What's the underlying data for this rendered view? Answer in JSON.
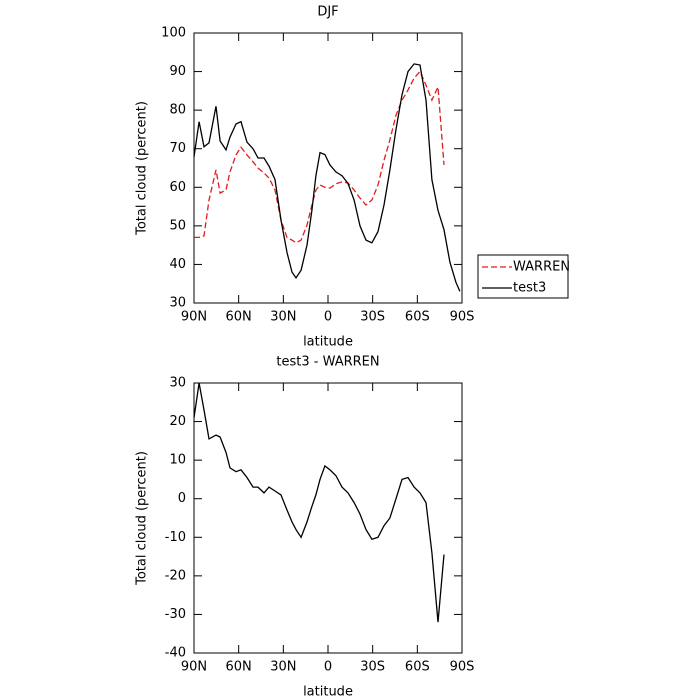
{
  "chart_data": [
    {
      "type": "line",
      "title": "DJF",
      "x_label": "latitude",
      "y_label": "Total cloud (percent)",
      "x": [
        90,
        86.6,
        83.3,
        79.9,
        75.2,
        72.5,
        68.5,
        65.8,
        61.8,
        58.4,
        54.4,
        50.4,
        47,
        43,
        39.6,
        35.6,
        31.6,
        27.5,
        24.2,
        21.5,
        18.1,
        14.1,
        10.8,
        8.1,
        5.4,
        2.1,
        -1.3,
        -5.3,
        -9.4,
        -13.4,
        -17.5,
        -21.5,
        -25.5,
        -29.5,
        -33.6,
        -37.6,
        -41.6,
        -45.7,
        -49.7,
        -53.7,
        -57.8,
        -61.8,
        -65.8,
        -69.8,
        -73.9,
        -77.9,
        -81.9,
        -85.9,
        -88.6
      ],
      "series": [
        {
          "name": "WARREN",
          "color": "#e41a1c",
          "dashed": true,
          "values": [
            47,
            47,
            47.4,
            56.7,
            64.5,
            58.5,
            59.3,
            64,
            68.4,
            70.4,
            68.4,
            66.6,
            65,
            63.7,
            62.4,
            59.3,
            51.5,
            46.9,
            46.3,
            45.6,
            46.3,
            50.2,
            55.4,
            59.3,
            60.6,
            60,
            59.8,
            60.9,
            61.4,
            61.1,
            59.3,
            57.2,
            55.4,
            56.7,
            60.6,
            67,
            72.3,
            78.7,
            82.6,
            85.2,
            88.3,
            90,
            86.5,
            82.6,
            86,
            65.8,
            null,
            null,
            null
          ]
        },
        {
          "name": "test3",
          "color": "#000000",
          "dashed": false,
          "values": [
            67.9,
            77,
            70.5,
            71.5,
            81,
            72,
            69.7,
            73,
            76.4,
            77,
            71.7,
            70,
            67.6,
            67.6,
            65.5,
            62,
            51.5,
            43,
            38,
            36.5,
            38.5,
            45,
            54,
            63,
            69,
            68.5,
            65.8,
            64,
            63,
            61,
            56.7,
            50,
            46.3,
            45.6,
            48.5,
            55.4,
            64.5,
            75,
            84,
            90,
            92,
            91.7,
            82.6,
            62,
            54,
            49,
            40.6,
            35.4,
            33
          ]
        }
      ],
      "xlim": [
        90,
        -90
      ],
      "ylim": [
        30,
        100
      ],
      "xticks": [
        {
          "value": 90,
          "label": "90N"
        },
        {
          "value": 60,
          "label": "60N"
        },
        {
          "value": 30,
          "label": "30N"
        },
        0,
        {
          "value": -30,
          "label": "30S"
        },
        {
          "value": -60,
          "label": "60S"
        },
        {
          "value": -90,
          "label": "90S"
        }
      ],
      "yticks": [
        30,
        40,
        50,
        60,
        70,
        80,
        90,
        100
      ],
      "legend": "right"
    },
    {
      "type": "line",
      "title": "test3 - WARREN",
      "x_label": "latitude",
      "y_label": "Total cloud (percent)",
      "x": [
        90,
        86.6,
        83.3,
        79.9,
        75.2,
        72.5,
        68.5,
        65.8,
        61.8,
        58.4,
        54.4,
        50.4,
        47,
        43,
        39.6,
        35.6,
        31.6,
        27.5,
        24.2,
        21.5,
        18.1,
        14.1,
        10.8,
        8.1,
        5.4,
        2.1,
        -1.3,
        -5.3,
        -9.4,
        -13.4,
        -17.5,
        -21.5,
        -25.5,
        -29.5,
        -33.6,
        -37.6,
        -41.6,
        -45.7,
        -49.7,
        -53.7,
        -57.8,
        -61.8,
        -65.8,
        -69.8,
        -73.9,
        -77.9
      ],
      "values": [
        21,
        30,
        23,
        15.5,
        16.5,
        16,
        12,
        8,
        7,
        7.5,
        5.5,
        3,
        3,
        1.5,
        3,
        2,
        1,
        -3,
        -6,
        -8,
        -10,
        -6,
        -2,
        1,
        5,
        8.5,
        7.5,
        6,
        3,
        1.5,
        -1,
        -4,
        -8,
        -10.5,
        -10,
        -7,
        -5,
        0,
        5,
        5.5,
        3,
        1.5,
        -1,
        -14,
        -32,
        -14.5
      ],
      "color": "#000000",
      "xlim": [
        90,
        -90
      ],
      "ylim": [
        -40,
        30
      ],
      "xticks": [
        {
          "value": 90,
          "label": "90N"
        },
        {
          "value": 60,
          "label": "60N"
        },
        {
          "value": 30,
          "label": "30N"
        },
        0,
        {
          "value": -30,
          "label": "30S"
        },
        {
          "value": -60,
          "label": "60S"
        },
        {
          "value": -90,
          "label": "90S"
        }
      ],
      "yticks": [
        -40,
        -30,
        -20,
        -10,
        0,
        10,
        20,
        30
      ]
    }
  ]
}
